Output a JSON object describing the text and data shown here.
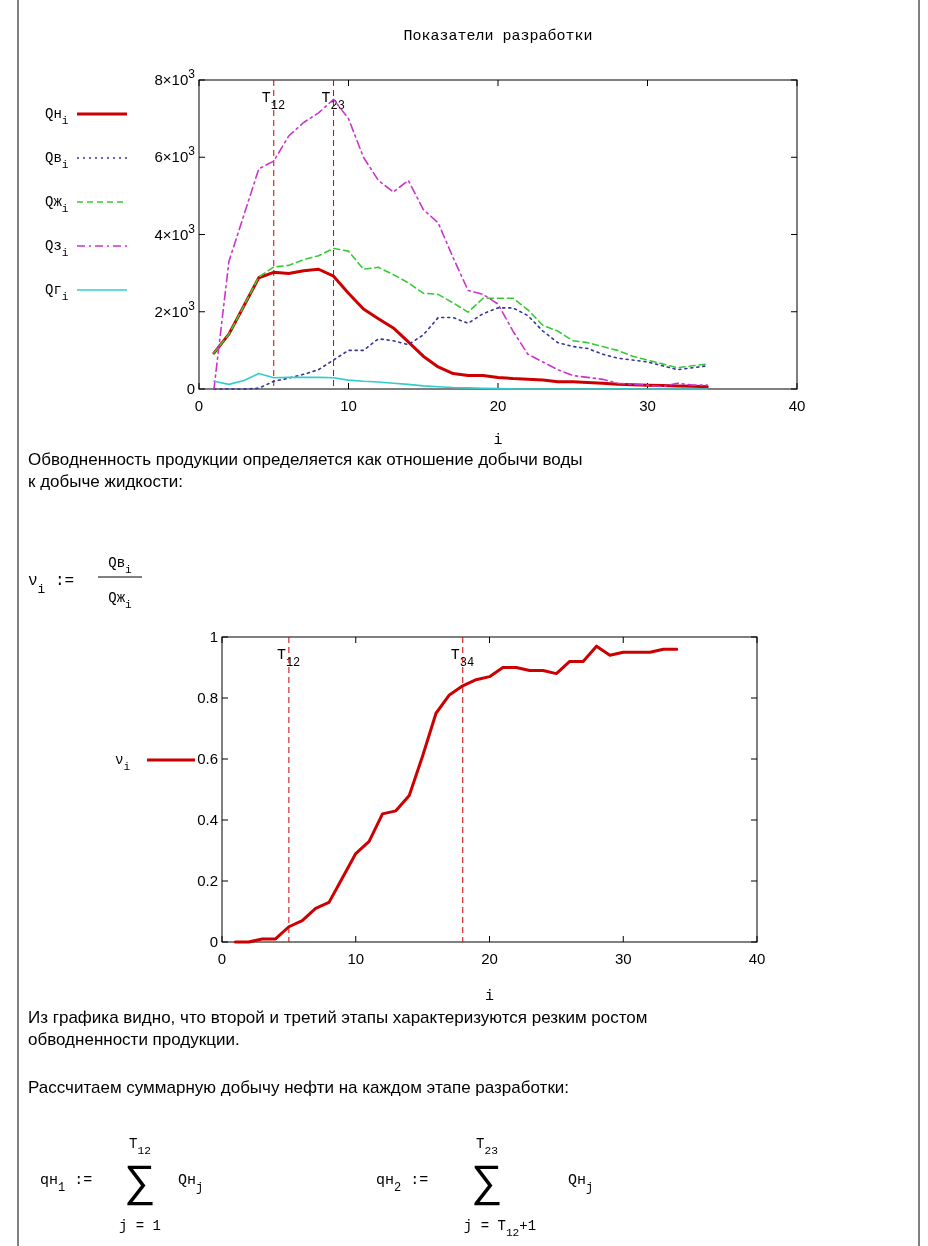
{
  "chart_data": [
    {
      "type": "line",
      "title": "Показатели разработки",
      "xlabel": "i",
      "x": [
        1,
        2,
        3,
        4,
        5,
        6,
        7,
        8,
        9,
        10,
        11,
        12,
        13,
        14,
        15,
        16,
        17,
        18,
        19,
        20,
        21,
        22,
        23,
        24,
        25,
        26,
        27,
        28,
        29,
        30,
        31,
        32,
        33,
        34
      ],
      "xlim": [
        0,
        40
      ],
      "xticks": [
        0,
        10,
        20,
        30,
        40
      ],
      "ylim": [
        0,
        8000
      ],
      "yticks": [
        {
          "value": 0,
          "label": "0"
        },
        {
          "value": 2000,
          "label": "2×10$^{3}$"
        },
        {
          "value": 4000,
          "label": "4×10$^{3}$"
        },
        {
          "value": 6000,
          "label": "6×10$^{3}$"
        },
        {
          "value": 8000,
          "label": "8×10$^{3}$"
        }
      ],
      "grid": false,
      "legend": "left",
      "marker": "none",
      "series": [
        {
          "name": "Qн$_{i}$",
          "color": "#cc0000",
          "line_style": "solid",
          "values": [
            930,
            1420,
            2150,
            2880,
            3020,
            2990,
            3060,
            3100,
            2920,
            2480,
            2070,
            1820,
            1580,
            1220,
            850,
            570,
            400,
            350,
            350,
            300,
            270,
            250,
            230,
            190,
            190,
            170,
            150,
            120,
            110,
            100,
            90,
            80,
            70,
            60
          ]
        },
        {
          "name": "Qв$_{i}$",
          "color": "#333399",
          "line_style": "dotted",
          "values": [
            0,
            0,
            0,
            20,
            200,
            280,
            380,
            500,
            750,
            1000,
            1000,
            1300,
            1250,
            1150,
            1400,
            1850,
            1850,
            1700,
            1950,
            2100,
            2100,
            1900,
            1500,
            1200,
            1100,
            1050,
            900,
            800,
            750,
            700,
            600,
            500,
            550,
            600
          ]
        },
        {
          "name": "Qж$_{i}$",
          "color": "#33cc33",
          "line_style": "dashed",
          "values": [
            930,
            1420,
            2150,
            2900,
            3160,
            3200,
            3350,
            3450,
            3640,
            3570,
            3100,
            3150,
            2960,
            2750,
            2480,
            2450,
            2230,
            1990,
            2350,
            2350,
            2350,
            2050,
            1650,
            1500,
            1250,
            1200,
            1100,
            1000,
            850,
            750,
            650,
            550,
            600,
            650
          ]
        },
        {
          "name": "Qз$_{i}$",
          "color": "#cc33cc",
          "line_style": "dashdot",
          "values": [
            0,
            3300,
            4500,
            5700,
            5900,
            6550,
            6900,
            7150,
            7500,
            7000,
            6000,
            5400,
            5100,
            5400,
            4650,
            4300,
            3400,
            2550,
            2450,
            2200,
            1500,
            900,
            700,
            500,
            350,
            300,
            250,
            150,
            120,
            100,
            60,
            150,
            100,
            100
          ]
        },
        {
          "name": "Qг$_{i}$",
          "color": "#33cccc",
          "line_style": "solid",
          "values": [
            200,
            120,
            220,
            400,
            290,
            300,
            300,
            300,
            290,
            230,
            200,
            180,
            150,
            120,
            80,
            60,
            40,
            30,
            20,
            10,
            0,
            0,
            0,
            0,
            0,
            0,
            0,
            0,
            0,
            0,
            0,
            0,
            0,
            0
          ]
        }
      ],
      "ref_lines": [
        {
          "axis": "x",
          "value": 5,
          "label": "T$_{12}$",
          "color": "#cc0000",
          "line_style": "dashed"
        },
        {
          "axis": "x",
          "value": 9,
          "label": "T$_{23}$",
          "color": "#cc0000",
          "line_style": "dashed"
        }
      ],
      "annotations": [
        "Обводненность продукции определяется как отношение добычи воды",
        "к добыче жидкости:",
        "ν$_{i}$ :=",
        "Qв$_{i}$",
        "Qж$_{i}$"
      ]
    },
    {
      "type": "line",
      "xlabel": "i",
      "x": [
        1,
        2,
        3,
        4,
        5,
        6,
        7,
        8,
        9,
        10,
        11,
        12,
        13,
        14,
        15,
        16,
        17,
        18,
        19,
        20,
        21,
        22,
        23,
        24,
        25,
        26,
        27,
        28,
        29,
        30,
        31,
        32,
        33,
        34
      ],
      "xlim": [
        0,
        40
      ],
      "xticks": [
        0,
        10,
        20,
        30,
        40
      ],
      "ylim": [
        0,
        1
      ],
      "yticks": [
        0,
        0.2,
        0.4,
        0.6,
        0.8,
        1
      ],
      "grid": false,
      "legend": "left",
      "marker": "none",
      "series": [
        {
          "name": "ν$_{i}$",
          "color": "#cc0000",
          "line_style": "solid",
          "values": [
            0,
            0,
            0.01,
            0.01,
            0.05,
            0.07,
            0.11,
            0.13,
            0.21,
            0.29,
            0.33,
            0.42,
            0.43,
            0.48,
            0.61,
            0.75,
            0.81,
            0.84,
            0.86,
            0.87,
            0.9,
            0.9,
            0.89,
            0.89,
            0.88,
            0.92,
            0.92,
            0.97,
            0.94,
            0.95,
            0.95,
            0.95,
            0.96,
            0.96
          ]
        }
      ],
      "ref_lines": [
        {
          "axis": "x",
          "value": 5,
          "label": "T$_{12}$",
          "color": "#cc0000",
          "line_style": "dashed"
        },
        {
          "axis": "x",
          "value": 18,
          "label": "T$_{34}$",
          "color": "#cc0000",
          "line_style": "dashed"
        }
      ],
      "annotations": [
        "Из графика видно, что второй и третий этапы характеризуются резким ростом",
        "обводненности продукции.",
        "Рассчитаем суммарную добычу нефти на каждом этапе разработки:",
        "qн$_{1}$ :=",
        "T$_{12}$",
        "∑",
        "j  =  1",
        "Qн$_{j}$",
        "qн$_{2}$ :=",
        "T$_{23}$",
        "∑",
        "j  =  T$_{12}$+1",
        "Qн$_{j}$"
      ]
    }
  ]
}
